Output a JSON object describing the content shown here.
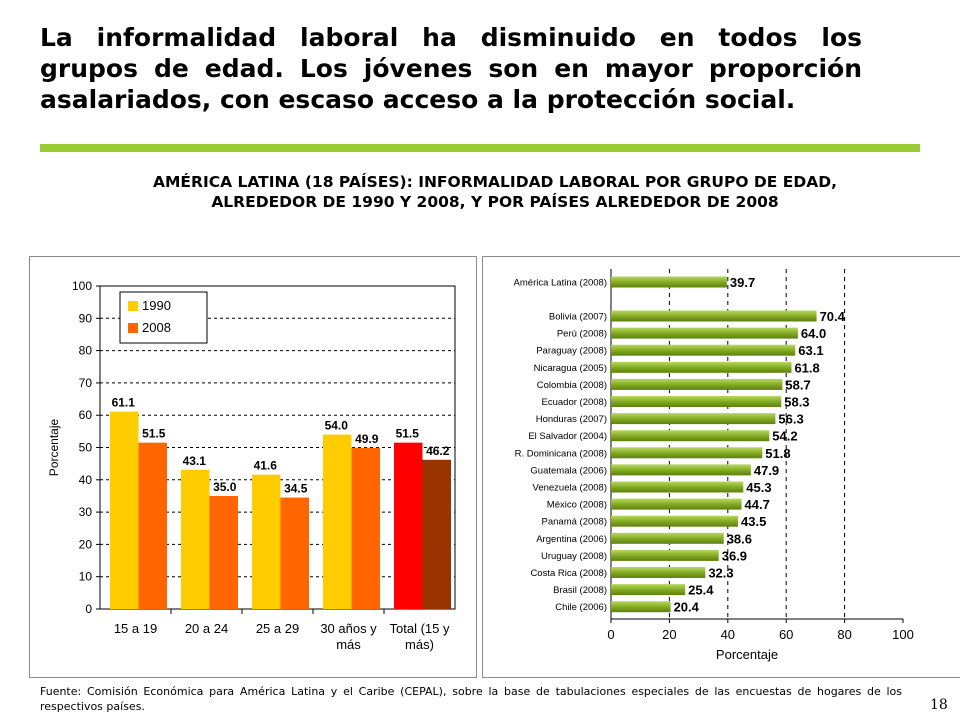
{
  "slide": {
    "headline": "La informalidad laboral ha disminuido en todos los grupos de edad. Los jóvenes son en mayor proporción asalariados, con escaso acceso a la protección social.",
    "chart_title": "AMÉRICA LATINA (18 PAÍSES): INFORMALIDAD LABORAL POR GRUPO DE EDAD, ALREDEDOR DE 1990 Y 2008, Y POR PAÍSES ALREDEDOR DE 2008",
    "source": "Fuente: Comisión Económica para América Latina y el Caribe (CEPAL), sobre la base de tabulaciones especiales de las encuestas de hogares de los respectivos países.",
    "page_number": "18"
  },
  "colors": {
    "accent_rule": "#99cc33",
    "bar_1990": "#ffcc00",
    "bar_2008": "#ff6600",
    "total_1990": "#ff0000",
    "total_2008": "#993300",
    "country_bar": "#80a820",
    "country_bar_light": "#b8d860",
    "plot_bg": "#ffffff"
  },
  "chart_data": [
    {
      "type": "bar",
      "title": "",
      "xlabel": "",
      "ylabel": "Porcentaje",
      "ylim": [
        0,
        100
      ],
      "yticks": [
        "0",
        "10",
        "20",
        "30",
        "40",
        "50",
        "60",
        "70",
        "80",
        "90",
        "100"
      ],
      "grid": true,
      "legend": "top-left",
      "categories": [
        [
          "15 a 19"
        ],
        [
          "20 a 24"
        ],
        [
          "25 a 29"
        ],
        [
          "30 años y",
          "más"
        ],
        [
          "Total (15 y",
          "más)"
        ]
      ],
      "series": [
        {
          "name": "1990",
          "values": [
            61.1,
            43.1,
            41.6,
            54.0,
            51.5
          ],
          "labels": [
            "61.1",
            "43.1",
            "41.6",
            "54.0",
            "51.5"
          ]
        },
        {
          "name": "2008",
          "values": [
            51.5,
            35.0,
            34.5,
            49.9,
            46.2
          ],
          "labels": [
            "51.5",
            "35.0",
            "34.5",
            "49.9",
            "46.2"
          ]
        }
      ]
    },
    {
      "type": "bar",
      "orientation": "horizontal",
      "title": "",
      "xlabel": "Porcentaje",
      "ylabel": "",
      "xlim": [
        0,
        100
      ],
      "xticks": [
        "0",
        "20",
        "40",
        "60",
        "80",
        "100"
      ],
      "grid": true,
      "categories": [
        "América Latina (2008)",
        "Bolivia (2007)",
        "Perú (2008)",
        "Paraguay (2008)",
        "Nicaragua (2005)",
        "Colombia (2008)",
        "Ecuador (2008)",
        "Honduras (2007)",
        "El Salvador (2004)",
        "R. Dominicana (2008)",
        "Guatemala (2006)",
        "Venezuela (2008)",
        "México (2008)",
        "Panamá (2008)",
        "Argentina (2006)",
        "Uruguay (2008)",
        "Costa Rica (2008)",
        "Brasil (2008)",
        "Chile (2006)"
      ],
      "values": [
        39.7,
        70.4,
        64.0,
        63.1,
        61.8,
        58.7,
        58.3,
        56.3,
        54.2,
        51.8,
        47.9,
        45.3,
        44.7,
        43.5,
        38.6,
        36.9,
        32.3,
        25.4,
        20.4
      ],
      "labels": [
        "39.7",
        "70.4",
        "64.0",
        "63.1",
        "61.8",
        "58.7",
        "58.3",
        "56.3",
        "54.2",
        "51.8",
        "47.9",
        "45.3",
        "44.7",
        "43.5",
        "38.6",
        "36.9",
        "32.3",
        "25.4",
        "20.4"
      ]
    }
  ]
}
